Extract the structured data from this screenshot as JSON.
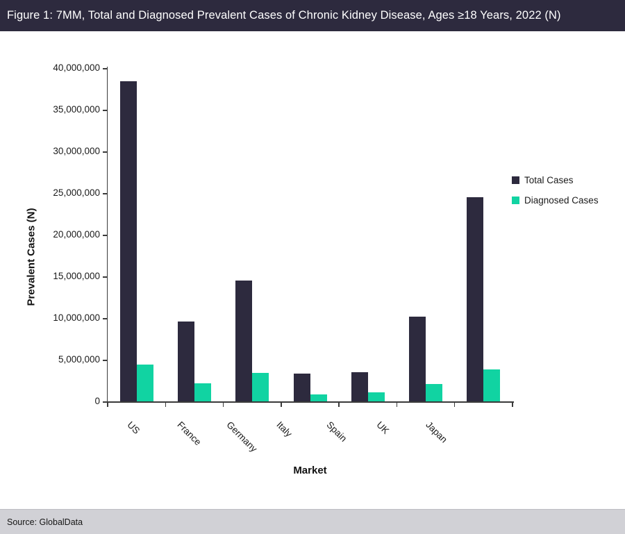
{
  "title_bar": {
    "text": "Figure 1: 7MM, Total and Diagnosed Prevalent Cases of Chronic Kidney Disease, Ages ≥18 Years, 2022 (N)"
  },
  "source_bar": {
    "text": "Source: GlobalData"
  },
  "colors": {
    "navy": "#2d2a3e",
    "green": "#11d3a2",
    "source_bar_bg": "#d1d1d6",
    "axis": "#3a3a3a"
  },
  "chart_data": {
    "type": "bar",
    "categories": [
      "US",
      "France",
      "Germany",
      "Italy",
      "Spain",
      "UK",
      "Japan"
    ],
    "series": [
      {
        "name": "Total Cases",
        "color": "#2d2a3e",
        "values": [
          38400000,
          9600000,
          14500000,
          3300000,
          3500000,
          10200000,
          24500000
        ]
      },
      {
        "name": "Diagnosed Cases",
        "color": "#11d3a2",
        "values": [
          4400000,
          2200000,
          3400000,
          800000,
          1100000,
          2100000,
          3800000
        ]
      }
    ],
    "xlabel": "Market",
    "ylabel": "Prevalent Cases (N)",
    "ylim": [
      0,
      40000000
    ],
    "ytick_step": 5000000,
    "grid": false,
    "legend_position": "right"
  }
}
